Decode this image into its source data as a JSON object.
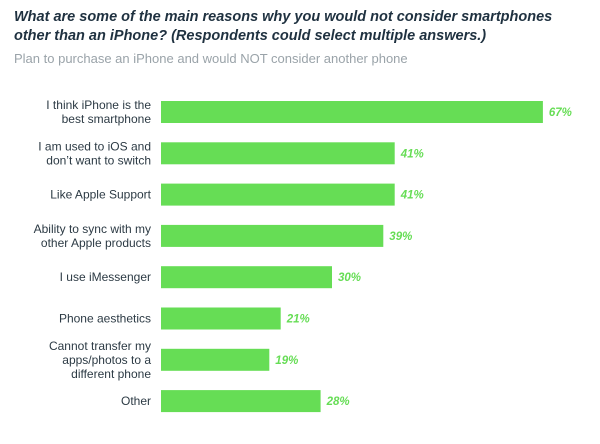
{
  "chart_data": {
    "type": "bar",
    "orientation": "horizontal",
    "title": "What are some of the main reasons why you would not consider smartphones other than an iPhone? (Respondents could select multiple answers.)",
    "subtitle": "Plan to purchase an iPhone and would NOT consider another phone",
    "categories": [
      "I think iPhone is the best smartphone",
      "I am used to iOS and don’t want to switch",
      "Like Apple Support",
      "Ability to sync with my other Apple products",
      "I use iMessenger",
      "Phone aesthetics",
      "Cannot transfer my apps/photos to a different phone",
      "Other"
    ],
    "category_lines": [
      [
        "I think iPhone is the",
        "best smartphone"
      ],
      [
        "I am used to iOS and",
        "don’t want to switch"
      ],
      [
        "Like Apple Support"
      ],
      [
        "Ability to sync with my",
        "other Apple products"
      ],
      [
        "I use iMessenger"
      ],
      [
        "Phone aesthetics"
      ],
      [
        "Cannot transfer my",
        "apps/photos to a",
        "different phone"
      ],
      [
        "Other"
      ]
    ],
    "values": [
      67,
      41,
      41,
      39,
      30,
      21,
      19,
      28
    ],
    "value_labels": [
      "67%",
      "41%",
      "41%",
      "39%",
      "30%",
      "21%",
      "19%",
      "28%"
    ],
    "xlim": [
      0,
      70
    ],
    "xlabel": "",
    "ylabel": "",
    "grid": false,
    "legend": "none",
    "colors": {
      "bar": "#66dd55",
      "value_label": "#66dd55",
      "title": "#1f3140",
      "subtitle": "#9aa3a9",
      "category_label": "#2c3a44"
    }
  }
}
